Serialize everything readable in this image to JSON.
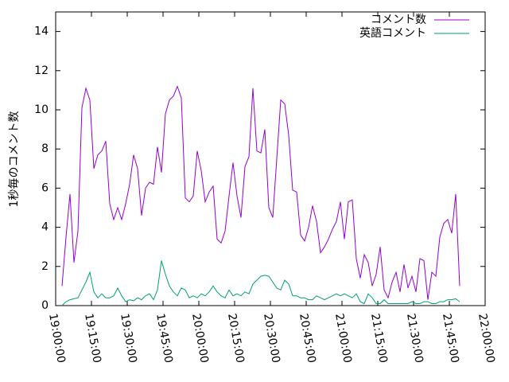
{
  "chart_data": {
    "type": "line",
    "ylabel": "1秒毎のコメント数",
    "legend": "top-right",
    "x": [
      "19:02:40",
      "19:04:20",
      "19:06:00",
      "19:07:40",
      "19:09:20",
      "19:11:00",
      "19:12:40",
      "19:14:20",
      "19:16:00",
      "19:17:40",
      "19:19:20",
      "19:21:00",
      "19:22:40",
      "19:24:20",
      "19:26:00",
      "19:27:40",
      "19:29:20",
      "19:31:00",
      "19:32:40",
      "19:34:20",
      "19:36:00",
      "19:37:40",
      "19:39:20",
      "19:41:00",
      "19:42:40",
      "19:44:20",
      "19:46:00",
      "19:47:40",
      "19:49:20",
      "19:51:00",
      "19:52:40",
      "19:54:20",
      "19:56:00",
      "19:57:40",
      "19:59:20",
      "20:01:00",
      "20:02:40",
      "20:04:20",
      "20:06:00",
      "20:07:40",
      "20:09:20",
      "20:11:00",
      "20:12:40",
      "20:14:20",
      "20:16:00",
      "20:17:40",
      "20:19:20",
      "20:21:00",
      "20:22:40",
      "20:24:20",
      "20:26:00",
      "20:27:40",
      "20:29:20",
      "20:31:00",
      "20:32:40",
      "20:34:20",
      "20:36:00",
      "20:37:40",
      "20:39:20",
      "20:41:00",
      "20:42:40",
      "20:44:20",
      "20:46:00",
      "20:47:40",
      "20:49:20",
      "20:51:00",
      "20:52:40",
      "20:54:20",
      "20:56:00",
      "20:57:40",
      "20:59:20",
      "21:01:00",
      "21:02:40",
      "21:04:20",
      "21:06:00",
      "21:07:40",
      "21:09:20",
      "21:11:00",
      "21:12:40",
      "21:14:20",
      "21:16:00",
      "21:17:40",
      "21:19:20",
      "21:21:00",
      "21:22:40",
      "21:24:20",
      "21:26:00",
      "21:27:40",
      "21:29:20",
      "21:31:00",
      "21:32:40",
      "21:34:20",
      "21:36:00",
      "21:37:40",
      "21:39:20",
      "21:41:00",
      "21:42:40",
      "21:44:20",
      "21:46:00",
      "21:47:40",
      "21:49:20"
    ],
    "series": [
      {
        "name": "コメント数",
        "color": "#9400d3",
        "values": [
          1.0,
          3.5,
          5.7,
          2.2,
          3.8,
          10.1,
          11.1,
          10.5,
          7.0,
          7.7,
          7.9,
          8.4,
          5.2,
          4.4,
          5.0,
          4.4,
          5.2,
          6.2,
          7.7,
          7.0,
          4.6,
          6.0,
          6.3,
          6.2,
          8.1,
          6.8,
          9.8,
          10.5,
          10.7,
          11.2,
          10.6,
          5.5,
          5.3,
          5.6,
          7.9,
          6.9,
          5.3,
          5.8,
          6.1,
          3.4,
          3.2,
          3.8,
          5.6,
          7.3,
          5.6,
          4.5,
          7.1,
          7.6,
          11.1,
          7.9,
          7.8,
          9.0,
          5.0,
          4.5,
          7.5,
          10.5,
          10.3,
          8.7,
          5.9,
          5.8,
          3.6,
          3.3,
          4.0,
          5.1,
          4.3,
          2.7,
          3.0,
          3.4,
          3.9,
          4.3,
          5.3,
          3.4,
          5.3,
          5.4,
          2.4,
          1.4,
          2.6,
          2.2,
          1.0,
          1.6,
          3.0,
          0.8,
          0.4,
          1.2,
          1.7,
          0.7,
          2.1,
          0.9,
          1.5,
          0.7,
          2.4,
          2.3,
          0.3,
          1.7,
          1.5,
          3.5,
          4.2,
          4.4,
          3.7,
          5.7,
          1.0
        ]
      },
      {
        "name": "英語コメント",
        "color": "#009e73",
        "values": [
          0,
          0.2,
          0.3,
          0.35,
          0.4,
          0.8,
          1.2,
          1.7,
          0.7,
          0.4,
          0.6,
          0.4,
          0.4,
          0.5,
          0.9,
          0.5,
          0.2,
          0.3,
          0.25,
          0.4,
          0.3,
          0.5,
          0.6,
          0.3,
          0.8,
          2.3,
          1.6,
          1.0,
          0.7,
          0.5,
          0.9,
          0.8,
          0.4,
          0.5,
          0.4,
          0.6,
          0.5,
          0.7,
          1.0,
          0.7,
          0.5,
          0.4,
          0.8,
          0.5,
          0.6,
          0.5,
          0.7,
          0.6,
          1.1,
          1.3,
          1.5,
          1.55,
          1.5,
          1.2,
          0.9,
          0.8,
          1.3,
          1.1,
          0.5,
          0.5,
          0.4,
          0.4,
          0.3,
          0.3,
          0.5,
          0.4,
          0.3,
          0.4,
          0.5,
          0.6,
          0.5,
          0.6,
          0.5,
          0.4,
          0.6,
          0.2,
          0.1,
          0.6,
          0.4,
          0.1,
          0.1,
          0.3,
          0.1,
          0.1,
          0.1,
          0.1,
          0.1,
          0.1,
          0.2,
          0.1,
          0.1,
          0.2,
          0.2,
          0.1,
          0.1,
          0.2,
          0.2,
          0.3,
          0.3,
          0.35,
          0.2
        ]
      }
    ],
    "xlim": [
      "19:00:00",
      "22:00:00"
    ],
    "xticks": [
      "19:00:00",
      "19:15:00",
      "19:30:00",
      "19:45:00",
      "20:00:00",
      "20:15:00",
      "20:30:00",
      "20:45:00",
      "21:00:00",
      "21:15:00",
      "21:30:00",
      "21:45:00",
      "22:00:00"
    ],
    "ylim": [
      0,
      15
    ],
    "yticks": [
      0,
      2,
      4,
      6,
      8,
      10,
      12,
      14
    ]
  }
}
